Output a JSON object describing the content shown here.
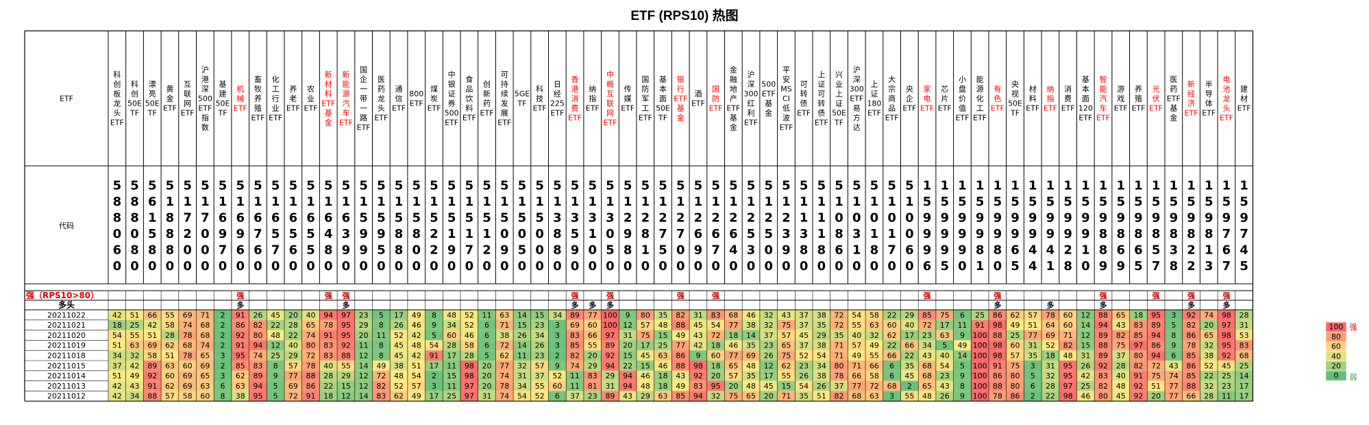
{
  "title": "ETF (RPS10) 热图",
  "row_labels": {
    "etf": "ETF",
    "code": "代码",
    "strong": "强（RPS10>80）",
    "duotou": "多头"
  },
  "marks": {
    "strong": "强",
    "duotou": "多"
  },
  "legend": {
    "labels": [
      "100",
      "80",
      "60",
      "40",
      "20",
      "0"
    ],
    "strong_label": "强",
    "weak_label": "弱"
  },
  "colors": {
    "high": "#f8696b",
    "mid": "#ffeb84",
    "low": "#63be7b",
    "red_text": "#ff0000"
  },
  "chart_data": {
    "type": "heatmap",
    "title": "ETF (RPS10) 热图",
    "etfs": [
      {
        "name": "科创板龙头ETF",
        "code": "588060",
        "red": false
      },
      {
        "name": "科创50ETF",
        "code": "588080",
        "red": false
      },
      {
        "name": "漂亮50ETF",
        "code": "561580",
        "red": false
      },
      {
        "name": "黄金ETF",
        "code": "518880",
        "red": false
      },
      {
        "name": "互联网ETF",
        "code": "517200",
        "red": false
      },
      {
        "name": "沪港深500ETF指数",
        "code": "517000",
        "red": false
      },
      {
        "name": "基建50ETF",
        "code": "516970",
        "red": false
      },
      {
        "name": "机械ETF",
        "code": "516960",
        "red": true
      },
      {
        "name": "畜牧养殖ETF",
        "code": "516760",
        "red": false
      },
      {
        "name": "化工行业ETF",
        "code": "516570",
        "red": false
      },
      {
        "name": "养老ETF",
        "code": "516560",
        "red": false
      },
      {
        "name": "农业ETF",
        "code": "516550",
        "red": false
      },
      {
        "name": "新材料ETF基金",
        "code": "516480",
        "red": true
      },
      {
        "name": "新能源汽车ETF",
        "code": "516390",
        "red": true
      },
      {
        "name": "国企一带一路ETF",
        "code": "515990",
        "red": false
      },
      {
        "name": "医药龙头ETF",
        "code": "515950",
        "red": false
      },
      {
        "name": "通信ETF",
        "code": "515880",
        "red": false
      },
      {
        "name": "800ETF",
        "code": "515800",
        "red": false
      },
      {
        "name": "煤炭ETF",
        "code": "515220",
        "red": false
      },
      {
        "name": "中银证券500ETF",
        "code": "515190",
        "red": false
      },
      {
        "name": "食品饮料ETF",
        "code": "515170",
        "red": false
      },
      {
        "name": "创新药ETF",
        "code": "515120",
        "red": false
      },
      {
        "name": "可持续发展ETF",
        "code": "515090",
        "red": false
      },
      {
        "name": "5GETF",
        "code": "515050",
        "red": false
      },
      {
        "name": "科技ETF",
        "code": "515000",
        "red": false
      },
      {
        "name": "日经225ETF",
        "code": "513880",
        "red": false
      },
      {
        "name": "香港消费ETF",
        "code": "513590",
        "red": true
      },
      {
        "name": "纳指ETF",
        "code": "513100",
        "red": false
      },
      {
        "name": "中概互联网ETF",
        "code": "513050",
        "red": true
      },
      {
        "name": "传媒ETF",
        "code": "512980",
        "red": false
      },
      {
        "name": "国防军工ETF",
        "code": "512810",
        "red": false
      },
      {
        "name": "基本面50ETF",
        "code": "512750",
        "red": false
      },
      {
        "name": "银行ETF基金",
        "code": "512700",
        "red": true
      },
      {
        "name": "酒ETF",
        "code": "512690",
        "red": false
      },
      {
        "name": "国防ETF",
        "code": "512670",
        "red": true
      },
      {
        "name": "金融地产ETF基金",
        "code": "512640",
        "red": false
      },
      {
        "name": "沪深300红利ETF",
        "code": "512530",
        "red": false
      },
      {
        "name": "500ETF基金",
        "code": "512500",
        "red": false
      },
      {
        "name": "平安MSCI低波ETF",
        "code": "512390",
        "red": false
      },
      {
        "name": "可转债ETF",
        "code": "511380",
        "red": false
      },
      {
        "name": "上证可转债ETF",
        "code": "511180",
        "red": false
      },
      {
        "name": "兴业上证50ETF",
        "code": "510860",
        "red": false
      },
      {
        "name": "沪深300ETF易方达",
        "code": "510310",
        "red": false
      },
      {
        "name": "上证180ETF",
        "code": "510180",
        "red": false
      },
      {
        "name": "大宗商品ETF",
        "code": "510170",
        "red": false
      },
      {
        "name": "央企ETF",
        "code": "510060",
        "red": false
      },
      {
        "name": "家电ETF",
        "code": "159996",
        "red": true
      },
      {
        "name": "芯片ETF",
        "code": "159995",
        "red": false
      },
      {
        "name": "小盘价值ETF",
        "code": "159990",
        "red": false
      },
      {
        "name": "能源化工ETF",
        "code": "159981",
        "red": false
      },
      {
        "name": "有色ETF",
        "code": "159980",
        "red": true
      },
      {
        "name": "央视50ETF",
        "code": "159965",
        "red": false
      },
      {
        "name": "材料ETF",
        "code": "159944",
        "red": false
      },
      {
        "name": "纳指ETF",
        "code": "159941",
        "red": true
      },
      {
        "name": "消费ETF",
        "code": "159928",
        "red": false
      },
      {
        "name": "基本面120ETF",
        "code": "159910",
        "red": false
      },
      {
        "name": "智能汽车ETF",
        "code": "159889",
        "red": true
      },
      {
        "name": "游戏ETF",
        "code": "159869",
        "red": false
      },
      {
        "name": "养殖ETF",
        "code": "159865",
        "red": false
      },
      {
        "name": "光伏ETF",
        "code": "159857",
        "red": true
      },
      {
        "name": "医药ETF基金",
        "code": "159838",
        "red": false
      },
      {
        "name": "新经济ETF",
        "code": "159822",
        "red": true
      },
      {
        "name": "半导体ETF",
        "code": "159813",
        "red": false
      },
      {
        "name": "电池龙头ETF",
        "code": "159767",
        "red": true
      },
      {
        "name": "建材ETF",
        "code": "159745",
        "red": false
      }
    ],
    "strong_flags": [
      7,
      12,
      13,
      26,
      28,
      32,
      34,
      46,
      50,
      56,
      59,
      61,
      63
    ],
    "duotou_flags": [
      7,
      13,
      26,
      27,
      28,
      50,
      53,
      56,
      61,
      63
    ],
    "dates": [
      "20211022",
      "20211021",
      "20211020",
      "20211019",
      "20211018",
      "20211015",
      "20211014",
      "20211013",
      "20211012"
    ],
    "values": [
      [
        42,
        51,
        66,
        55,
        69,
        71,
        2,
        91,
        26,
        45,
        20,
        40,
        94,
        97,
        23,
        5,
        17,
        49,
        8,
        48,
        52,
        11,
        63,
        14,
        15,
        34,
        89,
        77,
        100,
        9,
        80,
        35,
        82,
        31,
        83,
        68,
        46,
        32,
        43,
        37,
        38,
        72,
        54,
        58,
        22,
        29,
        85,
        75,
        6,
        25,
        86,
        62,
        57,
        78,
        60,
        12,
        88,
        65,
        18,
        95,
        3,
        92,
        74,
        98,
        28
      ],
      [
        18,
        25,
        42,
        58,
        74,
        68,
        2,
        86,
        82,
        22,
        28,
        65,
        78,
        95,
        29,
        8,
        26,
        46,
        9,
        34,
        52,
        6,
        71,
        15,
        23,
        3,
        69,
        60,
        100,
        12,
        57,
        48,
        88,
        45,
        54,
        77,
        38,
        32,
        75,
        37,
        35,
        72,
        55,
        63,
        60,
        40,
        72,
        17,
        11,
        91,
        98,
        49,
        51,
        64,
        60,
        14,
        94,
        43,
        83,
        89,
        5,
        82,
        20,
        97,
        31
      ],
      [
        54,
        55,
        51,
        28,
        78,
        68,
        2,
        92,
        80,
        48,
        22,
        74,
        91,
        95,
        20,
        11,
        52,
        42,
        5,
        60,
        46,
        6,
        38,
        26,
        34,
        3,
        83,
        66,
        97,
        31,
        75,
        15,
        49,
        43,
        72,
        18,
        14,
        37,
        57,
        45,
        29,
        35,
        40,
        32,
        62,
        17,
        23,
        63,
        9,
        100,
        88,
        25,
        77,
        69,
        71,
        12,
        89,
        82,
        85,
        94,
        8,
        86,
        65,
        98,
        53
      ],
      [
        51,
        63,
        69,
        62,
        68,
        74,
        2,
        91,
        94,
        12,
        40,
        80,
        83,
        92,
        11,
        8,
        45,
        48,
        54,
        28,
        58,
        6,
        72,
        14,
        26,
        3,
        85,
        55,
        89,
        20,
        17,
        25,
        77,
        42,
        18,
        46,
        35,
        23,
        65,
        37,
        38,
        71,
        57,
        49,
        22,
        66,
        34,
        5,
        49,
        100,
        98,
        60,
        31,
        52,
        82,
        15,
        88,
        75,
        97,
        86,
        9,
        78,
        32,
        95,
        83
      ],
      [
        34,
        32,
        58,
        51,
        78,
        65,
        3,
        95,
        74,
        25,
        29,
        72,
        83,
        88,
        12,
        8,
        45,
        42,
        91,
        17,
        28,
        5,
        62,
        11,
        23,
        2,
        82,
        20,
        92,
        15,
        45,
        63,
        86,
        9,
        60,
        77,
        69,
        26,
        75,
        52,
        54,
        71,
        49,
        55,
        66,
        22,
        43,
        40,
        14,
        100,
        98,
        57,
        35,
        18,
        48,
        31,
        89,
        37,
        80,
        94,
        6,
        85,
        38,
        92,
        68
      ],
      [
        37,
        42,
        89,
        63,
        60,
        69,
        2,
        85,
        83,
        8,
        57,
        78,
        40,
        55,
        14,
        49,
        38,
        51,
        17,
        11,
        98,
        20,
        77,
        32,
        57,
        9,
        74,
        29,
        94,
        22,
        15,
        46,
        88,
        98,
        18,
        65,
        48,
        12,
        62,
        23,
        34,
        80,
        71,
        66,
        6,
        35,
        68,
        54,
        5,
        100,
        91,
        75,
        3,
        31,
        95,
        26,
        92,
        28,
        82,
        72,
        43,
        86,
        52,
        45,
        25
      ],
      [
        51,
        49,
        92,
        60,
        69,
        65,
        3,
        62,
        89,
        9,
        77,
        88,
        28,
        29,
        12,
        72,
        48,
        54,
        2,
        15,
        98,
        20,
        74,
        31,
        37,
        52,
        11,
        83,
        29,
        94,
        46,
        18,
        43,
        92,
        20,
        57,
        35,
        17,
        55,
        26,
        38,
        78,
        66,
        58,
        6,
        45,
        68,
        23,
        9,
        100,
        86,
        80,
        5,
        32,
        95,
        42,
        83,
        40,
        91,
        75,
        74,
        85,
        22,
        25,
        14
      ],
      [
        42,
        43,
        91,
        62,
        69,
        63,
        6,
        63,
        94,
        5,
        69,
        86,
        22,
        15,
        12,
        82,
        52,
        57,
        3,
        11,
        97,
        20,
        78,
        34,
        55,
        60,
        11,
        81,
        31,
        94,
        48,
        18,
        49,
        83,
        95,
        20,
        48,
        45,
        15,
        54,
        26,
        37,
        77,
        72,
        68,
        2,
        65,
        43,
        8,
        100,
        88,
        80,
        6,
        28,
        97,
        25,
        82,
        48,
        92,
        51,
        77,
        88,
        32,
        23,
        17
      ],
      [
        42,
        34,
        88,
        57,
        58,
        60,
        8,
        38,
        95,
        5,
        72,
        91,
        18,
        12,
        14,
        83,
        62,
        49,
        17,
        25,
        97,
        31,
        74,
        54,
        52,
        6,
        37,
        23,
        89,
        43,
        29,
        63,
        85,
        94,
        32,
        75,
        65,
        20,
        71,
        35,
        51,
        82,
        68,
        63,
        3,
        55,
        48,
        26,
        9,
        100,
        78,
        86,
        2,
        22,
        98,
        46,
        80,
        45,
        92,
        20,
        77,
        66,
        28,
        11,
        17
      ]
    ]
  }
}
